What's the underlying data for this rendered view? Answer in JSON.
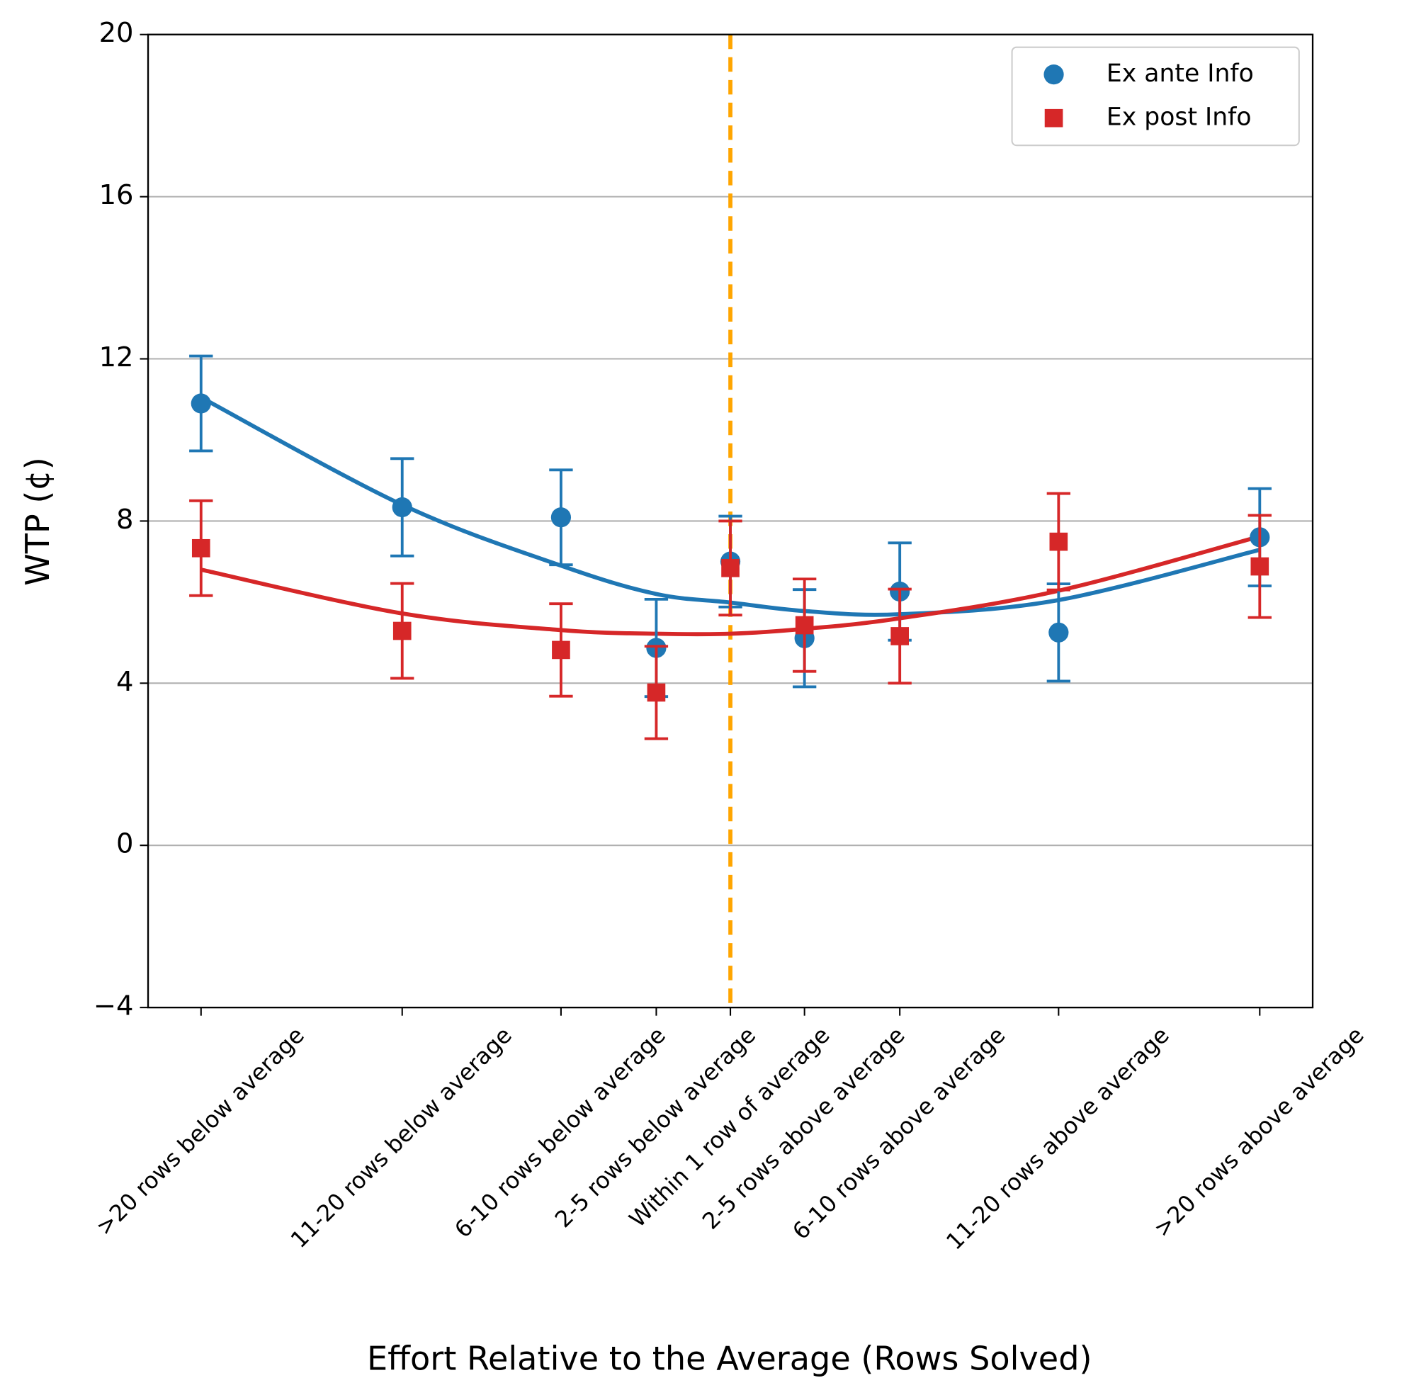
{
  "chart_data": {
    "type": "errorbar",
    "xlabel": "Effort Relative to the Average (Rows Solved)",
    "ylabel": "WTP (¢)",
    "xlim": [
      -27.5,
      27.5
    ],
    "ylim": [
      -4,
      20
    ],
    "xticks": [
      {
        "value": -25,
        "label": ">20 rows below average"
      },
      {
        "value": -15.5,
        "label": "11-20 rows below average"
      },
      {
        "value": -8,
        "label": "6-10 rows below average"
      },
      {
        "value": -3.5,
        "label": "2-5 rows below average"
      },
      {
        "value": 0,
        "label": "Within 1 row of average"
      },
      {
        "value": 3.5,
        "label": "2-5 rows above average"
      },
      {
        "value": 8,
        "label": "6-10 rows above average"
      },
      {
        "value": 15.5,
        "label": "11-20 rows above average"
      },
      {
        "value": 25,
        "label": ">20 rows above average"
      }
    ],
    "yticks": [
      {
        "value": -4,
        "label": "−4"
      },
      0,
      4,
      8,
      12,
      16,
      20
    ],
    "grid": "y",
    "legend": "upper right",
    "vline": {
      "x": 0,
      "color": "#ffa500"
    },
    "x": [
      -25,
      -15.5,
      -8,
      -3.5,
      0,
      3.5,
      8,
      15.5,
      25
    ],
    "series": [
      {
        "name": "Ex ante Info",
        "color": "#1f77b4",
        "marker": "circle",
        "values": [
          10.9,
          8.34,
          8.09,
          4.87,
          7.0,
          5.11,
          6.26,
          5.25,
          7.6
        ],
        "errors": [
          1.17,
          1.2,
          1.17,
          1.2,
          1.12,
          1.2,
          1.2,
          1.2,
          1.2
        ],
        "fit": [
          11.05,
          8.4,
          6.9,
          6.2,
          5.99,
          5.78,
          5.7,
          6.05,
          7.29
        ]
      },
      {
        "name": "Ex post Info",
        "color": "#d62728",
        "marker": "square",
        "values": [
          7.33,
          5.29,
          4.82,
          3.77,
          6.84,
          5.43,
          5.16,
          7.49,
          6.88
        ],
        "errors": [
          1.17,
          1.17,
          1.14,
          1.14,
          1.16,
          1.14,
          1.16,
          1.19,
          1.26
        ],
        "fit": [
          6.8,
          5.72,
          5.31,
          5.22,
          5.22,
          5.34,
          5.6,
          6.28,
          7.62
        ]
      }
    ]
  }
}
